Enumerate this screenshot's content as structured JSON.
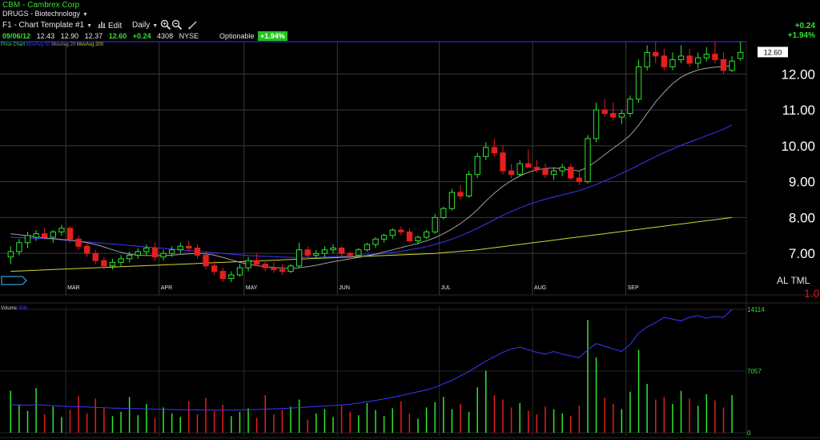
{
  "header": {
    "ticker_line": "CBM - Cambrex Corp",
    "sector": "DRUGS - Biotechnology",
    "template": "F1 - Chart Template #1",
    "edit_label": "Edit",
    "period": "Daily",
    "quote": {
      "date": "09/06/12",
      "open": "12.43",
      "high": "12.90",
      "low": "12.37",
      "last": "12.60",
      "change": "+0.24",
      "volume": "4308",
      "exchange": "NYSE"
    },
    "optionable": "Optionable",
    "pct_badge": "+1.94%",
    "change_top": "+0.24",
    "pct_top": "+1.94%"
  },
  "icons": [
    "zoom-in-icon",
    "zoom-out-icon",
    "draw-pencil-icon",
    "bars-icon",
    "caret-down-icon"
  ],
  "colors": {
    "up": "#2ee62e",
    "down": "#e61e1e",
    "ma10": "#a0a0a0",
    "ma50": "#3a3aff",
    "ma200": "#d4d430",
    "grid": "#3a3a3a",
    "last_price_line": "#3a3aff"
  },
  "legend": {
    "price": "Price Chart",
    "ma1": "MovAvg 50",
    "ma2": "MovAvg 20",
    "ma3": "MovAvg 200",
    "volume": "Volume",
    "volume_ma": "0Mh"
  },
  "aml": {
    "text": "AL TML",
    "num": "1.0"
  },
  "chart_data": [
    {
      "type": "candlestick",
      "title": "CBM - Cambrex Corp (Daily)",
      "ylim": [
        6.2,
        12.9
      ],
      "y_ticks": [
        "7.00",
        "8.00",
        "9.00",
        "10.00",
        "11.00",
        "12.00"
      ],
      "x_ticks": [
        "MAR",
        "APR",
        "MAY",
        "JUN",
        "JUL",
        "AUG",
        "SEP"
      ],
      "last_price_label": "12.60",
      "ohlc": [
        [
          6.9,
          7.2,
          6.7,
          7.05
        ],
        [
          7.05,
          7.4,
          6.95,
          7.3
        ],
        [
          7.3,
          7.6,
          7.15,
          7.5
        ],
        [
          7.45,
          7.65,
          7.35,
          7.55
        ],
        [
          7.55,
          7.7,
          7.4,
          7.45
        ],
        [
          7.45,
          7.65,
          7.3,
          7.6
        ],
        [
          7.6,
          7.8,
          7.5,
          7.7
        ],
        [
          7.7,
          7.75,
          7.3,
          7.4
        ],
        [
          7.4,
          7.5,
          7.1,
          7.2
        ],
        [
          7.2,
          7.3,
          6.9,
          7.0
        ],
        [
          7.0,
          7.1,
          6.7,
          6.8
        ],
        [
          6.8,
          6.9,
          6.55,
          6.65
        ],
        [
          6.65,
          6.85,
          6.55,
          6.75
        ],
        [
          6.75,
          6.95,
          6.65,
          6.85
        ],
        [
          6.85,
          7.05,
          6.75,
          6.95
        ],
        [
          6.95,
          7.15,
          6.85,
          7.05
        ],
        [
          7.05,
          7.25,
          6.95,
          7.15
        ],
        [
          7.15,
          7.3,
          6.8,
          6.9
        ],
        [
          6.9,
          7.1,
          6.8,
          7.0
        ],
        [
          7.0,
          7.2,
          6.9,
          7.1
        ],
        [
          7.1,
          7.3,
          7.0,
          7.2
        ],
        [
          7.2,
          7.35,
          7.05,
          7.15
        ],
        [
          7.15,
          7.25,
          6.85,
          6.95
        ],
        [
          6.95,
          7.05,
          6.55,
          6.65
        ],
        [
          6.65,
          6.8,
          6.4,
          6.5
        ],
        [
          6.5,
          6.6,
          6.2,
          6.3
        ],
        [
          6.3,
          6.5,
          6.2,
          6.4
        ],
        [
          6.4,
          6.7,
          6.35,
          6.6
        ],
        [
          6.6,
          6.9,
          6.5,
          6.8
        ],
        [
          6.8,
          7.0,
          6.65,
          6.7
        ],
        [
          6.7,
          6.8,
          6.5,
          6.6
        ],
        [
          6.6,
          6.75,
          6.45,
          6.55
        ],
        [
          6.55,
          6.7,
          6.4,
          6.5
        ],
        [
          6.5,
          6.7,
          6.45,
          6.65
        ],
        [
          6.65,
          7.3,
          6.6,
          7.1
        ],
        [
          7.1,
          7.2,
          6.85,
          6.95
        ],
        [
          6.95,
          7.1,
          6.85,
          7.0
        ],
        [
          7.0,
          7.2,
          6.9,
          7.1
        ],
        [
          7.1,
          7.25,
          7.0,
          7.15
        ],
        [
          7.15,
          7.2,
          6.9,
          7.0
        ],
        [
          7.0,
          7.05,
          6.85,
          6.95
        ],
        [
          6.95,
          7.15,
          6.9,
          7.1
        ],
        [
          7.1,
          7.3,
          7.05,
          7.25
        ],
        [
          7.25,
          7.45,
          7.15,
          7.4
        ],
        [
          7.4,
          7.55,
          7.3,
          7.5
        ],
        [
          7.5,
          7.7,
          7.4,
          7.65
        ],
        [
          7.65,
          7.75,
          7.5,
          7.6
        ],
        [
          7.6,
          7.7,
          7.3,
          7.35
        ],
        [
          7.35,
          7.5,
          7.25,
          7.45
        ],
        [
          7.45,
          7.65,
          7.4,
          7.6
        ],
        [
          7.6,
          8.1,
          7.55,
          8.0
        ],
        [
          8.0,
          8.3,
          7.95,
          8.25
        ],
        [
          8.25,
          8.8,
          8.2,
          8.7
        ],
        [
          8.7,
          8.9,
          8.5,
          8.6
        ],
        [
          8.6,
          9.3,
          8.55,
          9.2
        ],
        [
          9.2,
          9.8,
          9.1,
          9.7
        ],
        [
          9.7,
          10.1,
          9.6,
          9.95
        ],
        [
          9.95,
          10.2,
          9.7,
          9.8
        ],
        [
          9.8,
          10.0,
          9.2,
          9.3
        ],
        [
          9.3,
          9.5,
          9.1,
          9.2
        ],
        [
          9.2,
          9.6,
          9.15,
          9.5
        ],
        [
          9.5,
          9.9,
          9.45,
          9.4
        ],
        [
          9.4,
          9.6,
          9.25,
          9.35
        ],
        [
          9.35,
          9.5,
          9.1,
          9.2
        ],
        [
          9.2,
          9.4,
          9.05,
          9.3
        ],
        [
          9.3,
          9.5,
          9.15,
          9.4
        ],
        [
          9.4,
          9.5,
          9.05,
          9.1
        ],
        [
          9.1,
          9.3,
          8.9,
          9.0
        ],
        [
          9.0,
          10.3,
          8.95,
          10.2
        ],
        [
          10.2,
          11.2,
          10.1,
          11.0
        ],
        [
          11.0,
          11.3,
          10.8,
          10.9
        ],
        [
          10.9,
          11.2,
          10.7,
          10.8
        ],
        [
          10.8,
          11.0,
          10.6,
          10.9
        ],
        [
          10.9,
          11.4,
          10.8,
          11.3
        ],
        [
          11.3,
          12.4,
          11.2,
          12.2
        ],
        [
          12.2,
          12.8,
          12.1,
          12.6
        ],
        [
          12.6,
          12.9,
          12.3,
          12.5
        ],
        [
          12.5,
          12.7,
          12.1,
          12.2
        ],
        [
          12.2,
          12.6,
          12.1,
          12.4
        ],
        [
          12.4,
          12.8,
          12.3,
          12.5
        ],
        [
          12.5,
          12.7,
          12.2,
          12.3
        ],
        [
          12.3,
          12.6,
          12.15,
          12.45
        ],
        [
          12.45,
          12.75,
          12.35,
          12.55
        ],
        [
          12.55,
          12.9,
          12.3,
          12.4
        ],
        [
          12.4,
          12.6,
          12.0,
          12.1
        ],
        [
          12.1,
          12.5,
          12.05,
          12.36
        ],
        [
          12.43,
          12.9,
          12.37,
          12.6
        ]
      ],
      "ma10": [
        7.55,
        7.52,
        7.49,
        7.46,
        7.43,
        7.41,
        7.39,
        7.37,
        7.34,
        7.3,
        7.25,
        7.18,
        7.1,
        7.03,
        6.98,
        6.95,
        6.94,
        6.94,
        6.94,
        6.95,
        6.97,
        6.99,
        7.0,
        6.99,
        6.95,
        6.89,
        6.82,
        6.75,
        6.7,
        6.66,
        6.63,
        6.61,
        6.59,
        6.58,
        6.6,
        6.63,
        6.67,
        6.72,
        6.77,
        6.81,
        6.85,
        6.89,
        6.93,
        6.98,
        7.04,
        7.1,
        7.16,
        7.22,
        7.28,
        7.35,
        7.44,
        7.55,
        7.68,
        7.83,
        8.01,
        8.22,
        8.46,
        8.68,
        8.87,
        9.03,
        9.16,
        9.26,
        9.33,
        9.37,
        9.38,
        9.36,
        9.32,
        9.3,
        9.4,
        9.57,
        9.75,
        9.93,
        10.1,
        10.29,
        10.57,
        10.9,
        11.22,
        11.49,
        11.73,
        11.91,
        12.03,
        12.11,
        12.16,
        12.19,
        12.2,
        12.24
      ],
      "ma50": [
        7.45,
        7.44,
        7.43,
        7.42,
        7.41,
        7.4,
        7.38,
        7.36,
        7.34,
        7.32,
        7.3,
        7.28,
        7.26,
        7.24,
        7.22,
        7.2,
        7.18,
        7.16,
        7.14,
        7.12,
        7.1,
        7.08,
        7.06,
        7.04,
        7.02,
        7.0,
        6.98,
        6.96,
        6.94,
        6.93,
        6.92,
        6.91,
        6.9,
        6.89,
        6.89,
        6.89,
        6.89,
        6.9,
        6.91,
        6.92,
        6.93,
        6.94,
        6.96,
        6.98,
        7.0,
        7.03,
        7.06,
        7.1,
        7.14,
        7.19,
        7.25,
        7.32,
        7.4,
        7.49,
        7.59,
        7.7,
        7.82,
        7.94,
        8.06,
        8.17,
        8.27,
        8.36,
        8.44,
        8.51,
        8.57,
        8.63,
        8.69,
        8.75,
        8.83,
        8.92,
        9.02,
        9.12,
        9.23,
        9.34,
        9.46,
        9.58,
        9.7,
        9.81,
        9.91,
        10.01,
        10.1,
        10.19,
        10.28,
        10.37,
        10.46,
        10.58
      ],
      "ma200": [
        6.5,
        6.51,
        6.52,
        6.53,
        6.54,
        6.55,
        6.56,
        6.57,
        6.58,
        6.59,
        6.6,
        6.61,
        6.62,
        6.63,
        6.64,
        6.65,
        6.66,
        6.67,
        6.68,
        6.69,
        6.7,
        6.71,
        6.72,
        6.73,
        6.74,
        6.75,
        6.76,
        6.77,
        6.78,
        6.79,
        6.8,
        6.81,
        6.82,
        6.83,
        6.84,
        6.85,
        6.86,
        6.87,
        6.88,
        6.89,
        6.9,
        6.91,
        6.92,
        6.93,
        6.94,
        6.95,
        6.96,
        6.97,
        6.98,
        6.99,
        7.0,
        7.02,
        7.04,
        7.06,
        7.08,
        7.1,
        7.13,
        7.16,
        7.19,
        7.22,
        7.25,
        7.28,
        7.31,
        7.34,
        7.37,
        7.4,
        7.43,
        7.46,
        7.49,
        7.52,
        7.55,
        7.58,
        7.61,
        7.64,
        7.67,
        7.7,
        7.73,
        7.76,
        7.79,
        7.82,
        7.85,
        7.88,
        7.91,
        7.94,
        7.97,
        8.0
      ]
    },
    {
      "type": "bar",
      "title": "Volume",
      "ylim": [
        0,
        14114
      ],
      "y_ticks": [
        "0",
        "7057",
        "14114"
      ],
      "volume": [
        4800,
        3200,
        2500,
        5100,
        2100,
        3000,
        1800,
        2600,
        4200,
        2200,
        3900,
        2800,
        1900,
        2400,
        4100,
        2000,
        3300,
        1700,
        2900,
        2200,
        1800,
        3600,
        2100,
        4000,
        2500,
        3200,
        1900,
        2400,
        2800,
        1700,
        4300,
        2100,
        2600,
        3000,
        3800,
        1500,
        2200,
        2700,
        1800,
        3100,
        2400,
        2000,
        3400,
        2600,
        1900,
        2800,
        3600,
        2200,
        1600,
        2900,
        3500,
        4100,
        2700,
        3300,
        2400,
        5200,
        7100,
        4300,
        3800,
        2900,
        3400,
        2500,
        2100,
        3000,
        2700,
        2200,
        1900,
        3100,
        12900,
        8600,
        4000,
        3300,
        2700,
        4700,
        9500,
        5600,
        3800,
        4100,
        3300,
        4800,
        3900,
        3100,
        4400,
        3700,
        2900,
        4308
      ],
      "volume_ma": [
        3200,
        3180,
        3150,
        3220,
        3150,
        3100,
        3050,
        3000,
        2980,
        2950,
        2900,
        2870,
        2830,
        2800,
        2780,
        2760,
        2740,
        2700,
        2680,
        2660,
        2640,
        2630,
        2620,
        2610,
        2600,
        2600,
        2600,
        2620,
        2640,
        2660,
        2700,
        2740,
        2780,
        2830,
        2880,
        2940,
        3000,
        3060,
        3120,
        3180,
        3260,
        3400,
        3550,
        3700,
        3880,
        4050,
        4250,
        4480,
        4700,
        4900,
        5200,
        5600,
        6000,
        6500,
        7000,
        7600,
        8200,
        8700,
        9200,
        9600,
        9800,
        9500,
        9200,
        9000,
        9300,
        9000,
        8800,
        8600,
        9500,
        10200,
        9900,
        9600,
        9300,
        10100,
        11400,
        12100,
        12600,
        13200,
        13000,
        12800,
        13200,
        13400,
        13100,
        13300,
        13200,
        14114
      ]
    }
  ]
}
